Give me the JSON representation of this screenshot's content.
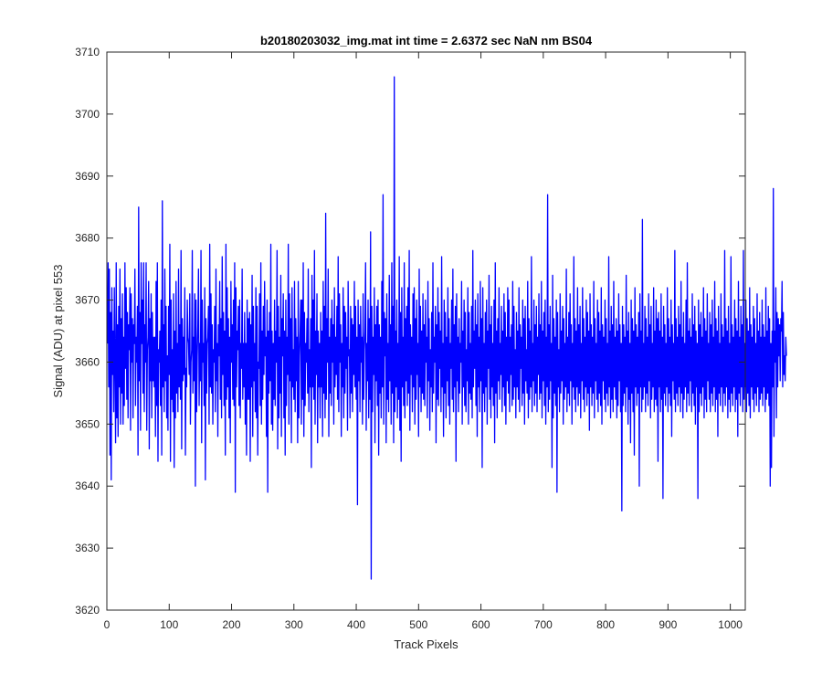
{
  "chart_data": {
    "type": "line",
    "title": "b20180203032_img.mat int time = 2.6372 sec  NaN nm BS04",
    "xlabel": "Track Pixels",
    "ylabel": "Signal (ADU) at pixel 553",
    "xlim": [
      0,
      1024
    ],
    "ylim": [
      3620,
      3710
    ],
    "xticks": [
      0,
      100,
      200,
      300,
      400,
      500,
      600,
      700,
      800,
      900,
      1000
    ],
    "yticks": [
      3620,
      3630,
      3640,
      3650,
      3660,
      3670,
      3680,
      3690,
      3700,
      3710
    ],
    "grid": false,
    "series": [
      {
        "color": "#0000ff",
        "x_start": 1,
        "x_step": 1,
        "values": [
          3663,
          3676,
          3656,
          3675,
          3645,
          3668,
          3641,
          3672,
          3658,
          3665,
          3652,
          3672,
          3660,
          3647,
          3676,
          3651,
          3666,
          3648,
          3669,
          3656,
          3675,
          3650,
          3667,
          3655,
          3671,
          3650,
          3664,
          3653,
          3676,
          3659,
          3672,
          3654,
          3668,
          3651,
          3666,
          3662,
          3672,
          3649,
          3671,
          3660,
          3667,
          3651,
          3666,
          3663,
          3675,
          3653,
          3664,
          3660,
          3669,
          3645,
          3685,
          3657,
          3668,
          3649,
          3676,
          3663,
          3670,
          3655,
          3676,
          3652,
          3666,
          3660,
          3676,
          3649,
          3662,
          3664,
          3673,
          3646,
          3667,
          3657,
          3671,
          3651,
          3668,
          3657,
          3664,
          3656,
          3664,
          3648,
          3673,
          3653,
          3676,
          3644,
          3662,
          3660,
          3665,
          3653,
          3670,
          3645,
          3686,
          3656,
          3666,
          3652,
          3675,
          3657,
          3669,
          3651,
          3661,
          3649,
          3669,
          3658,
          3679,
          3644,
          3670,
          3654,
          3662,
          3652,
          3671,
          3643,
          3665,
          3651,
          3673,
          3655,
          3663,
          3652,
          3675,
          3656,
          3666,
          3654,
          3678,
          3646,
          3667,
          3657,
          3664,
          3658,
          3672,
          3645,
          3659,
          3656,
          3670,
          3664,
          3663,
          3658,
          3671,
          3650,
          3660,
          3662,
          3678,
          3655,
          3664,
          3657,
          3671,
          3640,
          3670,
          3652,
          3661,
          3666,
          3675,
          3653,
          3663,
          3657,
          3678,
          3647,
          3670,
          3660,
          3663,
          3653,
          3672,
          3641,
          3667,
          3655,
          3663,
          3664,
          3669,
          3650,
          3679,
          3656,
          3671,
          3655,
          3666,
          3650,
          3662,
          3660,
          3669,
          3652,
          3675,
          3657,
          3663,
          3648,
          3666,
          3661,
          3673,
          3654,
          3667,
          3651,
          3677,
          3658,
          3668,
          3653,
          3665,
          3645,
          3679,
          3654,
          3672,
          3656,
          3667,
          3651,
          3664,
          3647,
          3673,
          3660,
          3666,
          3654,
          3670,
          3653,
          3676,
          3639,
          3672,
          3656,
          3665,
          3662,
          3669,
          3653,
          3670,
          3651,
          3663,
          3659,
          3675,
          3654,
          3663,
          3656,
          3668,
          3650,
          3663,
          3645,
          3670,
          3654,
          3667,
          3654,
          3668,
          3644,
          3666,
          3656,
          3674,
          3648,
          3669,
          3657,
          3663,
          3652,
          3672,
          3651,
          3669,
          3645,
          3660,
          3659,
          3671,
          3653,
          3676,
          3650,
          3665,
          3654,
          3669,
          3658,
          3673,
          3661,
          3664,
          3648,
          3670,
          3639,
          3665,
          3655,
          3668,
          3657,
          3679,
          3650,
          3665,
          3649,
          3663,
          3654,
          3670,
          3653,
          3665,
          3660,
          3678,
          3646,
          3669,
          3651,
          3664,
          3655,
          3674,
          3648,
          3667,
          3661,
          3671,
          3651,
          3665,
          3645,
          3670,
          3653,
          3664,
          3658,
          3679,
          3650,
          3671,
          3657,
          3667,
          3647,
          3672,
          3656,
          3662,
          3654,
          3673,
          3652,
          3667,
          3657,
          3664,
          3647,
          3673,
          3651,
          3661,
          3665,
          3670,
          3650,
          3670,
          3654,
          3676,
          3648,
          3668,
          3653,
          3663,
          3660,
          3667,
          3655,
          3675,
          3652,
          3662,
          3656,
          3667,
          3643,
          3674,
          3656,
          3670,
          3654,
          3678,
          3650,
          3665,
          3658,
          3671,
          3647,
          3665,
          3656,
          3663,
          3651,
          3668,
          3656,
          3665,
          3648,
          3673,
          3655,
          3669,
          3651,
          3684,
          3654,
          3667,
          3660,
          3675,
          3648,
          3664,
          3655,
          3667,
          3653,
          3670,
          3660,
          3666,
          3650,
          3672,
          3656,
          3664,
          3658,
          3669,
          3654,
          3677,
          3652,
          3671,
          3660,
          3666,
          3648,
          3663,
          3656,
          3672,
          3651,
          3669,
          3655,
          3668,
          3659,
          3664,
          3649,
          3673,
          3661,
          3662,
          3651,
          3669,
          3655,
          3667,
          3652,
          3666,
          3658,
          3673,
          3656,
          3669,
          3654,
          3664,
          3637,
          3670,
          3657,
          3666,
          3652,
          3669,
          3660,
          3664,
          3650,
          3671,
          3654,
          3662,
          3665,
          3676,
          3649,
          3663,
          3657,
          3670,
          3651,
          3667,
          3654,
          3681,
          3625,
          3669,
          3652,
          3664,
          3658,
          3672,
          3647,
          3666,
          3657,
          3669,
          3653,
          3670,
          3645,
          3666,
          3655,
          3664,
          3651,
          3673,
          3656,
          3687,
          3650,
          3668,
          3661,
          3667,
          3647,
          3671,
          3654,
          3663,
          3652,
          3674,
          3657,
          3666,
          3650,
          3676,
          3655,
          3669,
          3647,
          3706,
          3652,
          3665,
          3656,
          3670,
          3651,
          3663,
          3654,
          3677,
          3649,
          3668,
          3644,
          3672,
          3656,
          3664,
          3653,
          3676,
          3651,
          3667,
          3657,
          3669,
          3653,
          3672,
          3655,
          3678,
          3649,
          3666,
          3658,
          3664,
          3652,
          3671,
          3656,
          3672,
          3650,
          3667,
          3654,
          3670,
          3658,
          3663,
          3648,
          3675,
          3656,
          3669,
          3652,
          3665,
          3655,
          3671,
          3654,
          3666,
          3653,
          3670,
          3660,
          3664,
          3651,
          3673,
          3657,
          3667,
          3649,
          3662,
          3656,
          3668,
          3652,
          3676,
          3655,
          3664,
          3660,
          3669,
          3647,
          3666,
          3654,
          3672,
          3653,
          3668,
          3659,
          3665,
          3652,
          3677,
          3656,
          3663,
          3648,
          3670,
          3655,
          3668,
          3651,
          3664,
          3657,
          3672,
          3653,
          3667,
          3650,
          3663,
          3659,
          3670,
          3654,
          3675,
          3652,
          3666,
          3656,
          3669,
          3644,
          3671,
          3657,
          3664,
          3652,
          3667,
          3655,
          3663,
          3660,
          3673,
          3650,
          3665,
          3656,
          3670,
          3653,
          3668,
          3652,
          3662,
          3657,
          3672,
          3650,
          3668,
          3655,
          3663,
          3654,
          3669,
          3651,
          3678,
          3656,
          3665,
          3659,
          3670,
          3653,
          3666,
          3648,
          3671,
          3656,
          3664,
          3652,
          3673,
          3657,
          3667,
          3643,
          3672,
          3655,
          3663,
          3652,
          3668,
          3656,
          3670,
          3650,
          3665,
          3659,
          3674,
          3654,
          3666,
          3651,
          3669,
          3656,
          3663,
          3653,
          3670,
          3647,
          3676,
          3655,
          3665,
          3651,
          3667,
          3657,
          3672,
          3654,
          3663,
          3658,
          3669,
          3652,
          3665,
          3656,
          3671,
          3653,
          3668,
          3650,
          3664,
          3657,
          3672,
          3655,
          3670,
          3652,
          3664,
          3658,
          3666,
          3653,
          3673,
          3654,
          3669,
          3656,
          3662,
          3651,
          3668,
          3656,
          3665,
          3654,
          3672,
          3652,
          3666,
          3659,
          3664,
          3653,
          3670,
          3655,
          3667,
          3650,
          3669,
          3657,
          3662,
          3655,
          3673,
          3651,
          3667,
          3654,
          3665,
          3656,
          3677,
          3652,
          3663,
          3657,
          3670,
          3653,
          3666,
          3655,
          3669,
          3652,
          3664,
          3658,
          3671,
          3654,
          3666,
          3655,
          3673,
          3651,
          3665,
          3657,
          3668,
          3653,
          3670,
          3650,
          3664,
          3656,
          3687,
          3652,
          3666,
          3654,
          3669,
          3657,
          3663,
          3643,
          3674,
          3651,
          3667,
          3655,
          3664,
          3653,
          3670,
          3639,
          3668,
          3656,
          3662,
          3652,
          3671,
          3655,
          3665,
          3657,
          3669,
          3650,
          3667,
          3654,
          3663,
          3656,
          3675,
          3652,
          3664,
          3655,
          3668,
          3653,
          3671,
          3657,
          3666,
          3650,
          3663,
          3656,
          3677,
          3654,
          3667,
          3652,
          3665,
          3656,
          3672,
          3653,
          3666,
          3655,
          3669,
          3651,
          3663,
          3657,
          3672,
          3654,
          3667,
          3652,
          3664,
          3656,
          3670,
          3653,
          3668,
          3655,
          3665,
          3649,
          3671,
          3656,
          3666,
          3653,
          3664,
          3655,
          3673,
          3651,
          3667,
          3657,
          3663,
          3654,
          3670,
          3652,
          3668,
          3655,
          3665,
          3653,
          3672,
          3650,
          3666,
          3657,
          3664,
          3654,
          3670,
          3652,
          3667,
          3655,
          3663,
          3653,
          3677,
          3656,
          3665,
          3651,
          3669,
          3654,
          3666,
          3652,
          3673,
          3656,
          3664,
          3654,
          3667,
          3651,
          3665,
          3653,
          3671,
          3657,
          3666,
          3652,
          3663,
          3636,
          3669,
          3653,
          3666,
          3655,
          3664,
          3652,
          3674,
          3656,
          3665,
          3650,
          3668,
          3654,
          3663,
          3647,
          3670,
          3655,
          3667,
          3652,
          3665,
          3645,
          3672,
          3656,
          3666,
          3653,
          3664,
          3655,
          3668,
          3640,
          3671,
          3656,
          3665,
          3652,
          3683,
          3654,
          3663,
          3656,
          3669,
          3652,
          3667,
          3655,
          3664,
          3653,
          3671,
          3657,
          3666,
          3651,
          3669,
          3654,
          3663,
          3656,
          3672,
          3652,
          3665,
          3654,
          3670,
          3653,
          3667,
          3644,
          3668,
          3656,
          3665,
          3652,
          3671,
          3654,
          3664,
          3638,
          3669,
          3655,
          3666,
          3653,
          3663,
          3656,
          3672,
          3652,
          3667,
          3655,
          3664,
          3653,
          3670,
          3648,
          3666,
          3657,
          3663,
          3654,
          3678,
          3652,
          3667,
          3655,
          3664,
          3653,
          3669,
          3656,
          3666,
          3652,
          3673,
          3655,
          3664,
          3651,
          3668,
          3654,
          3663,
          3656,
          3670,
          3652,
          3676,
          3655,
          3665,
          3653,
          3667,
          3657,
          3664,
          3652,
          3671,
          3655,
          3666,
          3653,
          3669,
          3650,
          3665,
          3656,
          3663,
          3638,
          3670,
          3652,
          3666,
          3655,
          3668,
          3653,
          3664,
          3656,
          3672,
          3651,
          3667,
          3654,
          3665,
          3652,
          3671,
          3657,
          3663,
          3654,
          3668,
          3652,
          3666,
          3655,
          3670,
          3653,
          3664,
          3656,
          3673,
          3652,
          3667,
          3654,
          3665,
          3648,
          3669,
          3655,
          3663,
          3653,
          3671,
          3656,
          3666,
          3652,
          3664,
          3655,
          3678,
          3653,
          3667,
          3656,
          3665,
          3651,
          3669,
          3654,
          3663,
          3652,
          3677,
          3655,
          3666,
          3653,
          3664,
          3656,
          3670,
          3652,
          3667,
          3654,
          3665,
          3648,
          3673,
          3655,
          3664,
          3653,
          3669,
          3656,
          3666,
          3652,
          3678,
          3654,
          3663,
          3656,
          3670,
          3652,
          3667,
          3655,
          3665,
          3653,
          3672,
          3651,
          3666,
          3656,
          3664,
          3654,
          3669,
          3652,
          3667,
          3655,
          3663,
          3653,
          3671,
          3656,
          3665,
          3652,
          3668,
          3654,
          3664,
          3655,
          3670,
          3653,
          3666,
          3656,
          3664,
          3652,
          3672,
          3654,
          3665,
          3655,
          3669,
          3653,
          3667,
          3640,
          3663,
          3643,
          3665,
          3656,
          3688,
          3648,
          3665,
          3660,
          3672,
          3651,
          3668,
          3656,
          3667,
          3661,
          3666,
          3657,
          3667,
          3665,
          3673,
          3656,
          3668,
          3658,
          3661,
          3657,
          3664,
          3661
        ]
      }
    ]
  }
}
